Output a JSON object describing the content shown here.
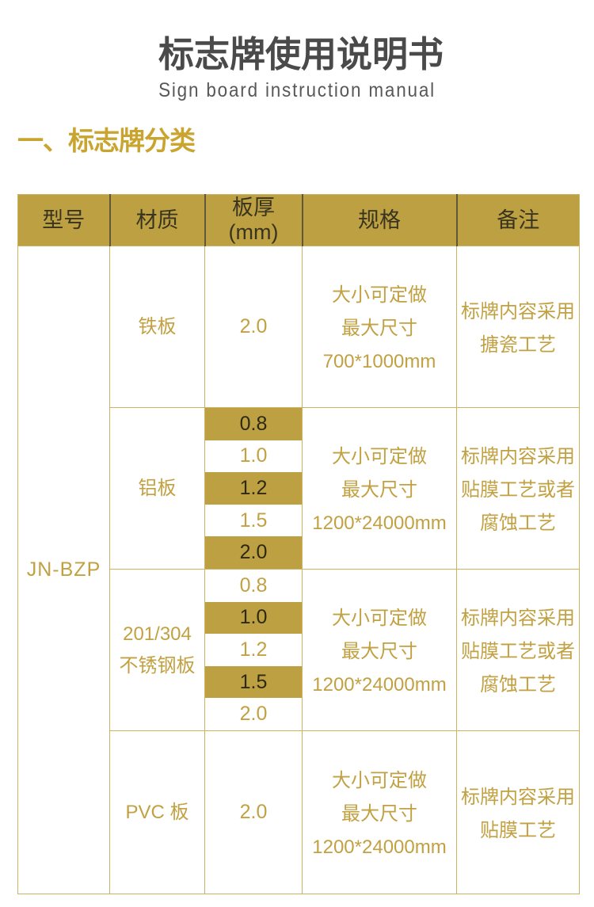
{
  "header": {
    "title": "标志牌使用说明书",
    "subtitle": "Sign board instruction manual"
  },
  "section": {
    "heading": "一、标志牌分类"
  },
  "colors": {
    "gold_band": "#bca042",
    "gold_text": "#c2a143",
    "gold_border": "#cdb262",
    "dark_text": "#2e2913",
    "title_gray": "#4a4a4a"
  },
  "table": {
    "columns": [
      "型号",
      "材质",
      "板厚\n(mm)",
      "规格",
      "备注"
    ],
    "model": "JN-BZP",
    "rows": [
      {
        "material": "铁板",
        "thickness": [
          {
            "value": "2.0",
            "hl": false
          }
        ],
        "spec": "大小可定做\n最大尺寸\n700*1000mm",
        "note": "标牌内容采用\n搪瓷工艺"
      },
      {
        "material": "铝板",
        "thickness": [
          {
            "value": "0.8",
            "hl": true
          },
          {
            "value": "1.0",
            "hl": false
          },
          {
            "value": "1.2",
            "hl": true
          },
          {
            "value": "1.5",
            "hl": false
          },
          {
            "value": "2.0",
            "hl": true
          }
        ],
        "spec": "大小可定做\n最大尺寸\n1200*24000mm",
        "note": "标牌内容采用\n贴膜工艺或者\n腐蚀工艺"
      },
      {
        "material": "201/304\n不锈钢板",
        "thickness": [
          {
            "value": "0.8",
            "hl": false
          },
          {
            "value": "1.0",
            "hl": true
          },
          {
            "value": "1.2",
            "hl": false
          },
          {
            "value": "1.5",
            "hl": true
          },
          {
            "value": "2.0",
            "hl": false
          }
        ],
        "spec": "大小可定做\n最大尺寸\n1200*24000mm",
        "note": "标牌内容采用\n贴膜工艺或者\n腐蚀工艺"
      },
      {
        "material": "PVC 板",
        "thickness": [
          {
            "value": "2.0",
            "hl": false
          }
        ],
        "spec": "大小可定做\n最大尺寸\n1200*24000mm",
        "note": "标牌内容采用\n贴膜工艺"
      }
    ]
  }
}
